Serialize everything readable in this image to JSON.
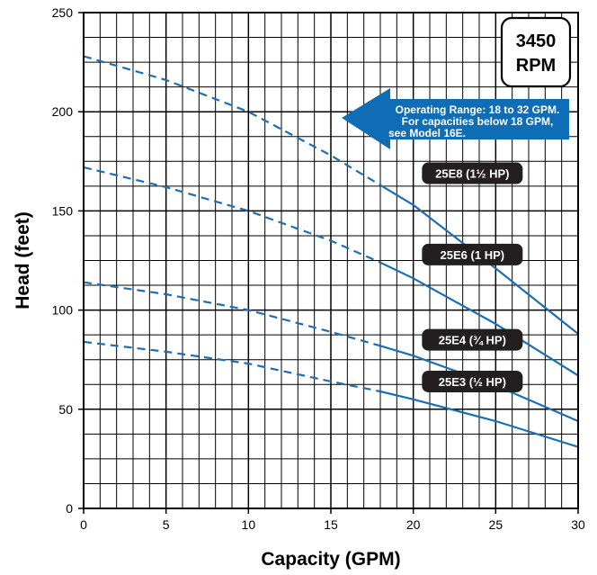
{
  "chart_data": {
    "type": "line",
    "xlabel": "Capacity (GPM)",
    "ylabel": "Head (feet)",
    "xlim": [
      0,
      30
    ],
    "ylim": [
      0,
      250
    ],
    "xticks": [
      0,
      5,
      10,
      15,
      20,
      25,
      30
    ],
    "yticks": [
      0,
      50,
      100,
      150,
      200,
      250
    ],
    "x_minor_step": 1,
    "y_minor_step": 12.5,
    "grid": true,
    "speed_label": [
      "3450",
      "RPM"
    ],
    "operating_note": [
      "Operating Range: 18 to 32 GPM.",
      "For capacities below 18 GPM,",
      "see Model 16E."
    ],
    "dashed_below_x": 18,
    "line_color": "#1a6fb5",
    "note_color": "#0f6db6",
    "badge_color": "#231f20",
    "series": [
      {
        "name": "25E8 (1½ HP)",
        "x": [
          0,
          5,
          10,
          15,
          18,
          20,
          25,
          30
        ],
        "y": [
          228,
          216,
          200,
          178,
          163,
          153,
          121,
          88
        ]
      },
      {
        "name": "25E6 (1 HP)",
        "x": [
          0,
          5,
          10,
          15,
          18,
          20,
          25,
          30
        ],
        "y": [
          172,
          162,
          150,
          135,
          124,
          116,
          93,
          67
        ]
      },
      {
        "name": "25E4 (¾ HP)",
        "x": [
          0,
          5,
          10,
          15,
          18,
          20,
          25,
          30
        ],
        "y": [
          114,
          108,
          100,
          89,
          82,
          77,
          62,
          44
        ]
      },
      {
        "name": "25E3 (½ HP)",
        "x": [
          0,
          5,
          10,
          15,
          18,
          20,
          25,
          30
        ],
        "y": [
          84,
          79,
          73,
          64,
          59,
          55,
          44,
          31
        ]
      }
    ]
  }
}
